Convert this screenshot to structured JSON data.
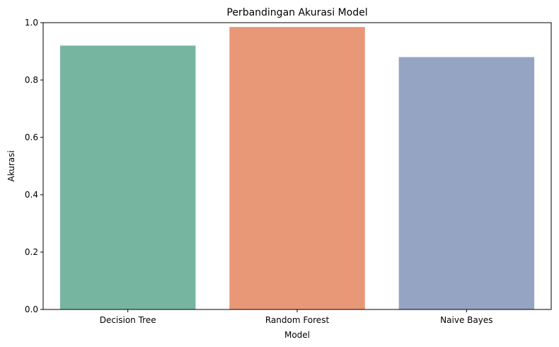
{
  "chart_data": {
    "type": "bar",
    "title": "Perbandingan Akurasi Model",
    "xlabel": "Model",
    "ylabel": "Akurasi",
    "categories": [
      "Decision Tree",
      "Random Forest",
      "Naive Bayes"
    ],
    "values": [
      0.92,
      0.985,
      0.88
    ],
    "colors": [
      "#76b5a0",
      "#e99877",
      "#95a4c3"
    ],
    "ylim": [
      0,
      1.0
    ],
    "yticks": [
      "0.0",
      "0.2",
      "0.4",
      "0.6",
      "0.8",
      "1.0"
    ],
    "grid": false,
    "legend": "none"
  }
}
